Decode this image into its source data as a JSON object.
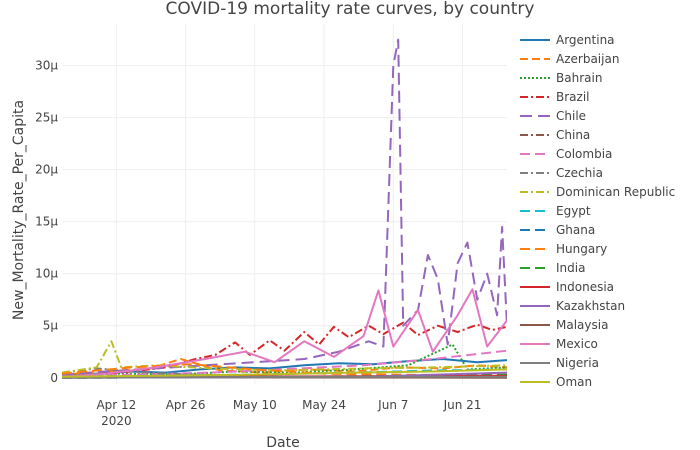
{
  "chart_data": {
    "type": "line",
    "title": "COVID-19 mortality rate curves, by country",
    "xlabel": "Date",
    "ylabel": "New_Mortality_Rate_Per_Capita",
    "grid": true,
    "legend_position": "right",
    "x_start": "2020-04-01",
    "x_end": "2020-06-30",
    "x_ticks": [
      {
        "date": "2020-04-12",
        "label": "Apr 12",
        "sublabel": "2020"
      },
      {
        "date": "2020-04-26",
        "label": "Apr 26",
        "sublabel": ""
      },
      {
        "date": "2020-05-10",
        "label": "May 10",
        "sublabel": ""
      },
      {
        "date": "2020-05-24",
        "label": "May 24",
        "sublabel": ""
      },
      {
        "date": "2020-06-07",
        "label": "Jun 7",
        "sublabel": ""
      },
      {
        "date": "2020-06-21",
        "label": "Jun 21",
        "sublabel": ""
      }
    ],
    "ylim": [
      -0.6,
      34
    ],
    "y_ticks": [
      {
        "value": 0,
        "label": "0"
      },
      {
        "value": 5,
        "label": "5µ"
      },
      {
        "value": 10,
        "label": "10µ"
      },
      {
        "value": 15,
        "label": "15µ"
      },
      {
        "value": 20,
        "label": "20µ"
      },
      {
        "value": 25,
        "label": "25µ"
      },
      {
        "value": 30,
        "label": "30µ"
      }
    ],
    "series": [
      {
        "name": "Argentina",
        "color": "#1f77b4",
        "dash": "solid",
        "points": [
          [
            "2020-04-01",
            0.1
          ],
          [
            "2020-04-08",
            0.4
          ],
          [
            "2020-04-15",
            0.6
          ],
          [
            "2020-04-22",
            0.5
          ],
          [
            "2020-04-29",
            0.8
          ],
          [
            "2020-05-06",
            1.0
          ],
          [
            "2020-05-13",
            0.9
          ],
          [
            "2020-05-20",
            1.2
          ],
          [
            "2020-05-27",
            1.4
          ],
          [
            "2020-06-03",
            1.3
          ],
          [
            "2020-06-10",
            1.6
          ],
          [
            "2020-06-17",
            1.8
          ],
          [
            "2020-06-24",
            1.5
          ],
          [
            "2020-06-30",
            1.7
          ]
        ]
      },
      {
        "name": "Azerbaijan",
        "color": "#ff7f0e",
        "dash": "8,4",
        "points": [
          [
            "2020-04-01",
            0.3
          ],
          [
            "2020-04-10",
            0.6
          ],
          [
            "2020-04-19",
            0.9
          ],
          [
            "2020-04-25",
            1.8
          ],
          [
            "2020-05-03",
            0.7
          ],
          [
            "2020-05-12",
            0.5
          ],
          [
            "2020-05-21",
            0.8
          ],
          [
            "2020-05-30",
            0.6
          ],
          [
            "2020-06-08",
            1.0
          ],
          [
            "2020-06-17",
            0.9
          ],
          [
            "2020-06-24",
            1.2
          ],
          [
            "2020-06-30",
            1.0
          ]
        ]
      },
      {
        "name": "Bahrain",
        "color": "#2ca02c",
        "dash": "2,2",
        "points": [
          [
            "2020-04-01",
            0.2
          ],
          [
            "2020-04-12",
            0.4
          ],
          [
            "2020-04-24",
            0.3
          ],
          [
            "2020-05-06",
            0.6
          ],
          [
            "2020-05-18",
            0.5
          ],
          [
            "2020-05-30",
            0.8
          ],
          [
            "2020-06-10",
            1.2
          ],
          [
            "2020-06-19",
            3.2
          ],
          [
            "2020-06-22",
            0.8
          ],
          [
            "2020-06-30",
            1.0
          ]
        ]
      },
      {
        "name": "Brazil",
        "color": "#d62728",
        "dash": "8,3,2,3",
        "points": [
          [
            "2020-04-01",
            0.1
          ],
          [
            "2020-04-08",
            0.3
          ],
          [
            "2020-04-15",
            0.6
          ],
          [
            "2020-04-22",
            1.0
          ],
          [
            "2020-04-28",
            1.8
          ],
          [
            "2020-05-02",
            2.2
          ],
          [
            "2020-05-06",
            3.4
          ],
          [
            "2020-05-09",
            2.2
          ],
          [
            "2020-05-13",
            3.6
          ],
          [
            "2020-05-16",
            2.6
          ],
          [
            "2020-05-20",
            4.4
          ],
          [
            "2020-05-23",
            3.2
          ],
          [
            "2020-05-26",
            4.9
          ],
          [
            "2020-05-29",
            3.9
          ],
          [
            "2020-06-02",
            5.0
          ],
          [
            "2020-06-05",
            4.2
          ],
          [
            "2020-06-09",
            5.3
          ],
          [
            "2020-06-12",
            4.1
          ],
          [
            "2020-06-16",
            5.0
          ],
          [
            "2020-06-20",
            4.4
          ],
          [
            "2020-06-24",
            5.1
          ],
          [
            "2020-06-27",
            4.6
          ],
          [
            "2020-06-30",
            4.9
          ]
        ]
      },
      {
        "name": "Chile",
        "color": "#9467bd",
        "dash": "12,6",
        "points": [
          [
            "2020-04-01",
            0.3
          ],
          [
            "2020-04-10",
            0.6
          ],
          [
            "2020-04-20",
            0.9
          ],
          [
            "2020-04-30",
            1.2
          ],
          [
            "2020-05-10",
            1.5
          ],
          [
            "2020-05-20",
            1.8
          ],
          [
            "2020-05-27",
            2.5
          ],
          [
            "2020-06-02",
            3.5
          ],
          [
            "2020-06-05",
            3.0
          ],
          [
            "2020-06-07",
            30.0
          ],
          [
            "2020-06-08",
            32.5
          ],
          [
            "2020-06-09",
            5.0
          ],
          [
            "2020-06-12",
            6.5
          ],
          [
            "2020-06-14",
            11.8
          ],
          [
            "2020-06-16",
            9.5
          ],
          [
            "2020-06-18",
            3.2
          ],
          [
            "2020-06-20",
            11.0
          ],
          [
            "2020-06-22",
            13.0
          ],
          [
            "2020-06-24",
            7.5
          ],
          [
            "2020-06-26",
            10.0
          ],
          [
            "2020-06-28",
            6.0
          ],
          [
            "2020-06-29",
            14.5
          ],
          [
            "2020-06-30",
            5.0
          ]
        ]
      },
      {
        "name": "China",
        "color": "#8c564b",
        "dash": "8,3,2,3",
        "points": [
          [
            "2020-04-01",
            0.05
          ],
          [
            "2020-06-30",
            0.05
          ]
        ]
      },
      {
        "name": "Colombia",
        "color": "#e377c2",
        "dash": "10,5",
        "points": [
          [
            "2020-04-01",
            0.1
          ],
          [
            "2020-04-15",
            0.3
          ],
          [
            "2020-05-01",
            0.5
          ],
          [
            "2020-05-15",
            0.8
          ],
          [
            "2020-06-01",
            1.2
          ],
          [
            "2020-06-15",
            1.8
          ],
          [
            "2020-06-30",
            2.6
          ]
        ]
      },
      {
        "name": "Czechia",
        "color": "#7f7f7f",
        "dash": "8,3,2,3",
        "points": [
          [
            "2020-04-01",
            0.5
          ],
          [
            "2020-04-08",
            0.9
          ],
          [
            "2020-04-15",
            0.6
          ],
          [
            "2020-04-22",
            0.4
          ],
          [
            "2020-05-06",
            0.2
          ],
          [
            "2020-05-20",
            0.1
          ],
          [
            "2020-06-10",
            0.1
          ],
          [
            "2020-06-30",
            0.1
          ]
        ]
      },
      {
        "name": "Dominican Republic",
        "color": "#bcbd22",
        "dash": "8,3,2,3",
        "points": [
          [
            "2020-04-01",
            0.5
          ],
          [
            "2020-04-08",
            1.0
          ],
          [
            "2020-04-11",
            3.5
          ],
          [
            "2020-04-13",
            1.0
          ],
          [
            "2020-04-20",
            1.2
          ],
          [
            "2020-05-01",
            0.9
          ],
          [
            "2020-05-15",
            0.7
          ],
          [
            "2020-06-01",
            0.9
          ],
          [
            "2020-06-15",
            1.0
          ],
          [
            "2020-06-30",
            1.2
          ]
        ]
      },
      {
        "name": "Egypt",
        "color": "#17becf",
        "dash": "10,5",
        "points": [
          [
            "2020-04-01",
            0.1
          ],
          [
            "2020-04-20",
            0.2
          ],
          [
            "2020-05-10",
            0.3
          ],
          [
            "2020-05-30",
            0.5
          ],
          [
            "2020-06-15",
            0.7
          ],
          [
            "2020-06-30",
            0.8
          ]
        ]
      },
      {
        "name": "Ghana",
        "color": "#1f77b4",
        "dash": "10,5",
        "points": [
          [
            "2020-04-01",
            0.0
          ],
          [
            "2020-05-01",
            0.05
          ],
          [
            "2020-06-01",
            0.1
          ],
          [
            "2020-06-30",
            0.1
          ]
        ]
      },
      {
        "name": "Hungary",
        "color": "#ff7f0e",
        "dash": "10,5",
        "points": [
          [
            "2020-04-01",
            0.4
          ],
          [
            "2020-04-15",
            1.0
          ],
          [
            "2020-04-27",
            1.3
          ],
          [
            "2020-05-10",
            0.8
          ],
          [
            "2020-05-24",
            0.4
          ],
          [
            "2020-06-07",
            0.3
          ],
          [
            "2020-06-30",
            0.2
          ]
        ]
      },
      {
        "name": "India",
        "color": "#2ca02c",
        "dash": "10,5",
        "points": [
          [
            "2020-04-01",
            0.0
          ],
          [
            "2020-05-01",
            0.05
          ],
          [
            "2020-06-01",
            0.15
          ],
          [
            "2020-06-30",
            0.3
          ]
        ]
      },
      {
        "name": "Indonesia",
        "color": "#d62728",
        "dash": "solid",
        "points": [
          [
            "2020-04-01",
            0.05
          ],
          [
            "2020-05-01",
            0.1
          ],
          [
            "2020-06-01",
            0.15
          ],
          [
            "2020-06-30",
            0.2
          ]
        ]
      },
      {
        "name": "Kazakhstan",
        "color": "#9467bd",
        "dash": "solid",
        "points": [
          [
            "2020-04-01",
            0.0
          ],
          [
            "2020-05-01",
            0.05
          ],
          [
            "2020-06-01",
            0.1
          ],
          [
            "2020-06-30",
            0.5
          ]
        ]
      },
      {
        "name": "Malaysia",
        "color": "#8c564b",
        "dash": "solid",
        "points": [
          [
            "2020-04-01",
            0.1
          ],
          [
            "2020-04-20",
            0.1
          ],
          [
            "2020-05-10",
            0.05
          ],
          [
            "2020-06-30",
            0.0
          ]
        ]
      },
      {
        "name": "Mexico",
        "color": "#e377c2",
        "dash": "solid",
        "points": [
          [
            "2020-04-01",
            0.1
          ],
          [
            "2020-04-10",
            0.4
          ],
          [
            "2020-04-20",
            1.0
          ],
          [
            "2020-04-30",
            1.8
          ],
          [
            "2020-05-08",
            2.5
          ],
          [
            "2020-05-14",
            1.5
          ],
          [
            "2020-05-20",
            3.5
          ],
          [
            "2020-05-26",
            2.0
          ],
          [
            "2020-06-01",
            4.0
          ],
          [
            "2020-06-04",
            8.4
          ],
          [
            "2020-06-07",
            3.0
          ],
          [
            "2020-06-12",
            6.5
          ],
          [
            "2020-06-15",
            2.5
          ],
          [
            "2020-06-20",
            6.0
          ],
          [
            "2020-06-23",
            8.5
          ],
          [
            "2020-06-26",
            3.0
          ],
          [
            "2020-06-30",
            5.5
          ]
        ]
      },
      {
        "name": "Nigeria",
        "color": "#7f7f7f",
        "dash": "solid",
        "points": [
          [
            "2020-04-01",
            0.0
          ],
          [
            "2020-05-01",
            0.05
          ],
          [
            "2020-06-01",
            0.1
          ],
          [
            "2020-06-30",
            0.1
          ]
        ]
      },
      {
        "name": "Oman",
        "color": "#bcbd22",
        "dash": "solid",
        "points": [
          [
            "2020-04-01",
            0.1
          ],
          [
            "2020-04-20",
            0.2
          ],
          [
            "2020-05-10",
            0.3
          ],
          [
            "2020-05-30",
            0.5
          ],
          [
            "2020-06-15",
            0.6
          ],
          [
            "2020-06-30",
            0.8
          ]
        ]
      }
    ]
  }
}
